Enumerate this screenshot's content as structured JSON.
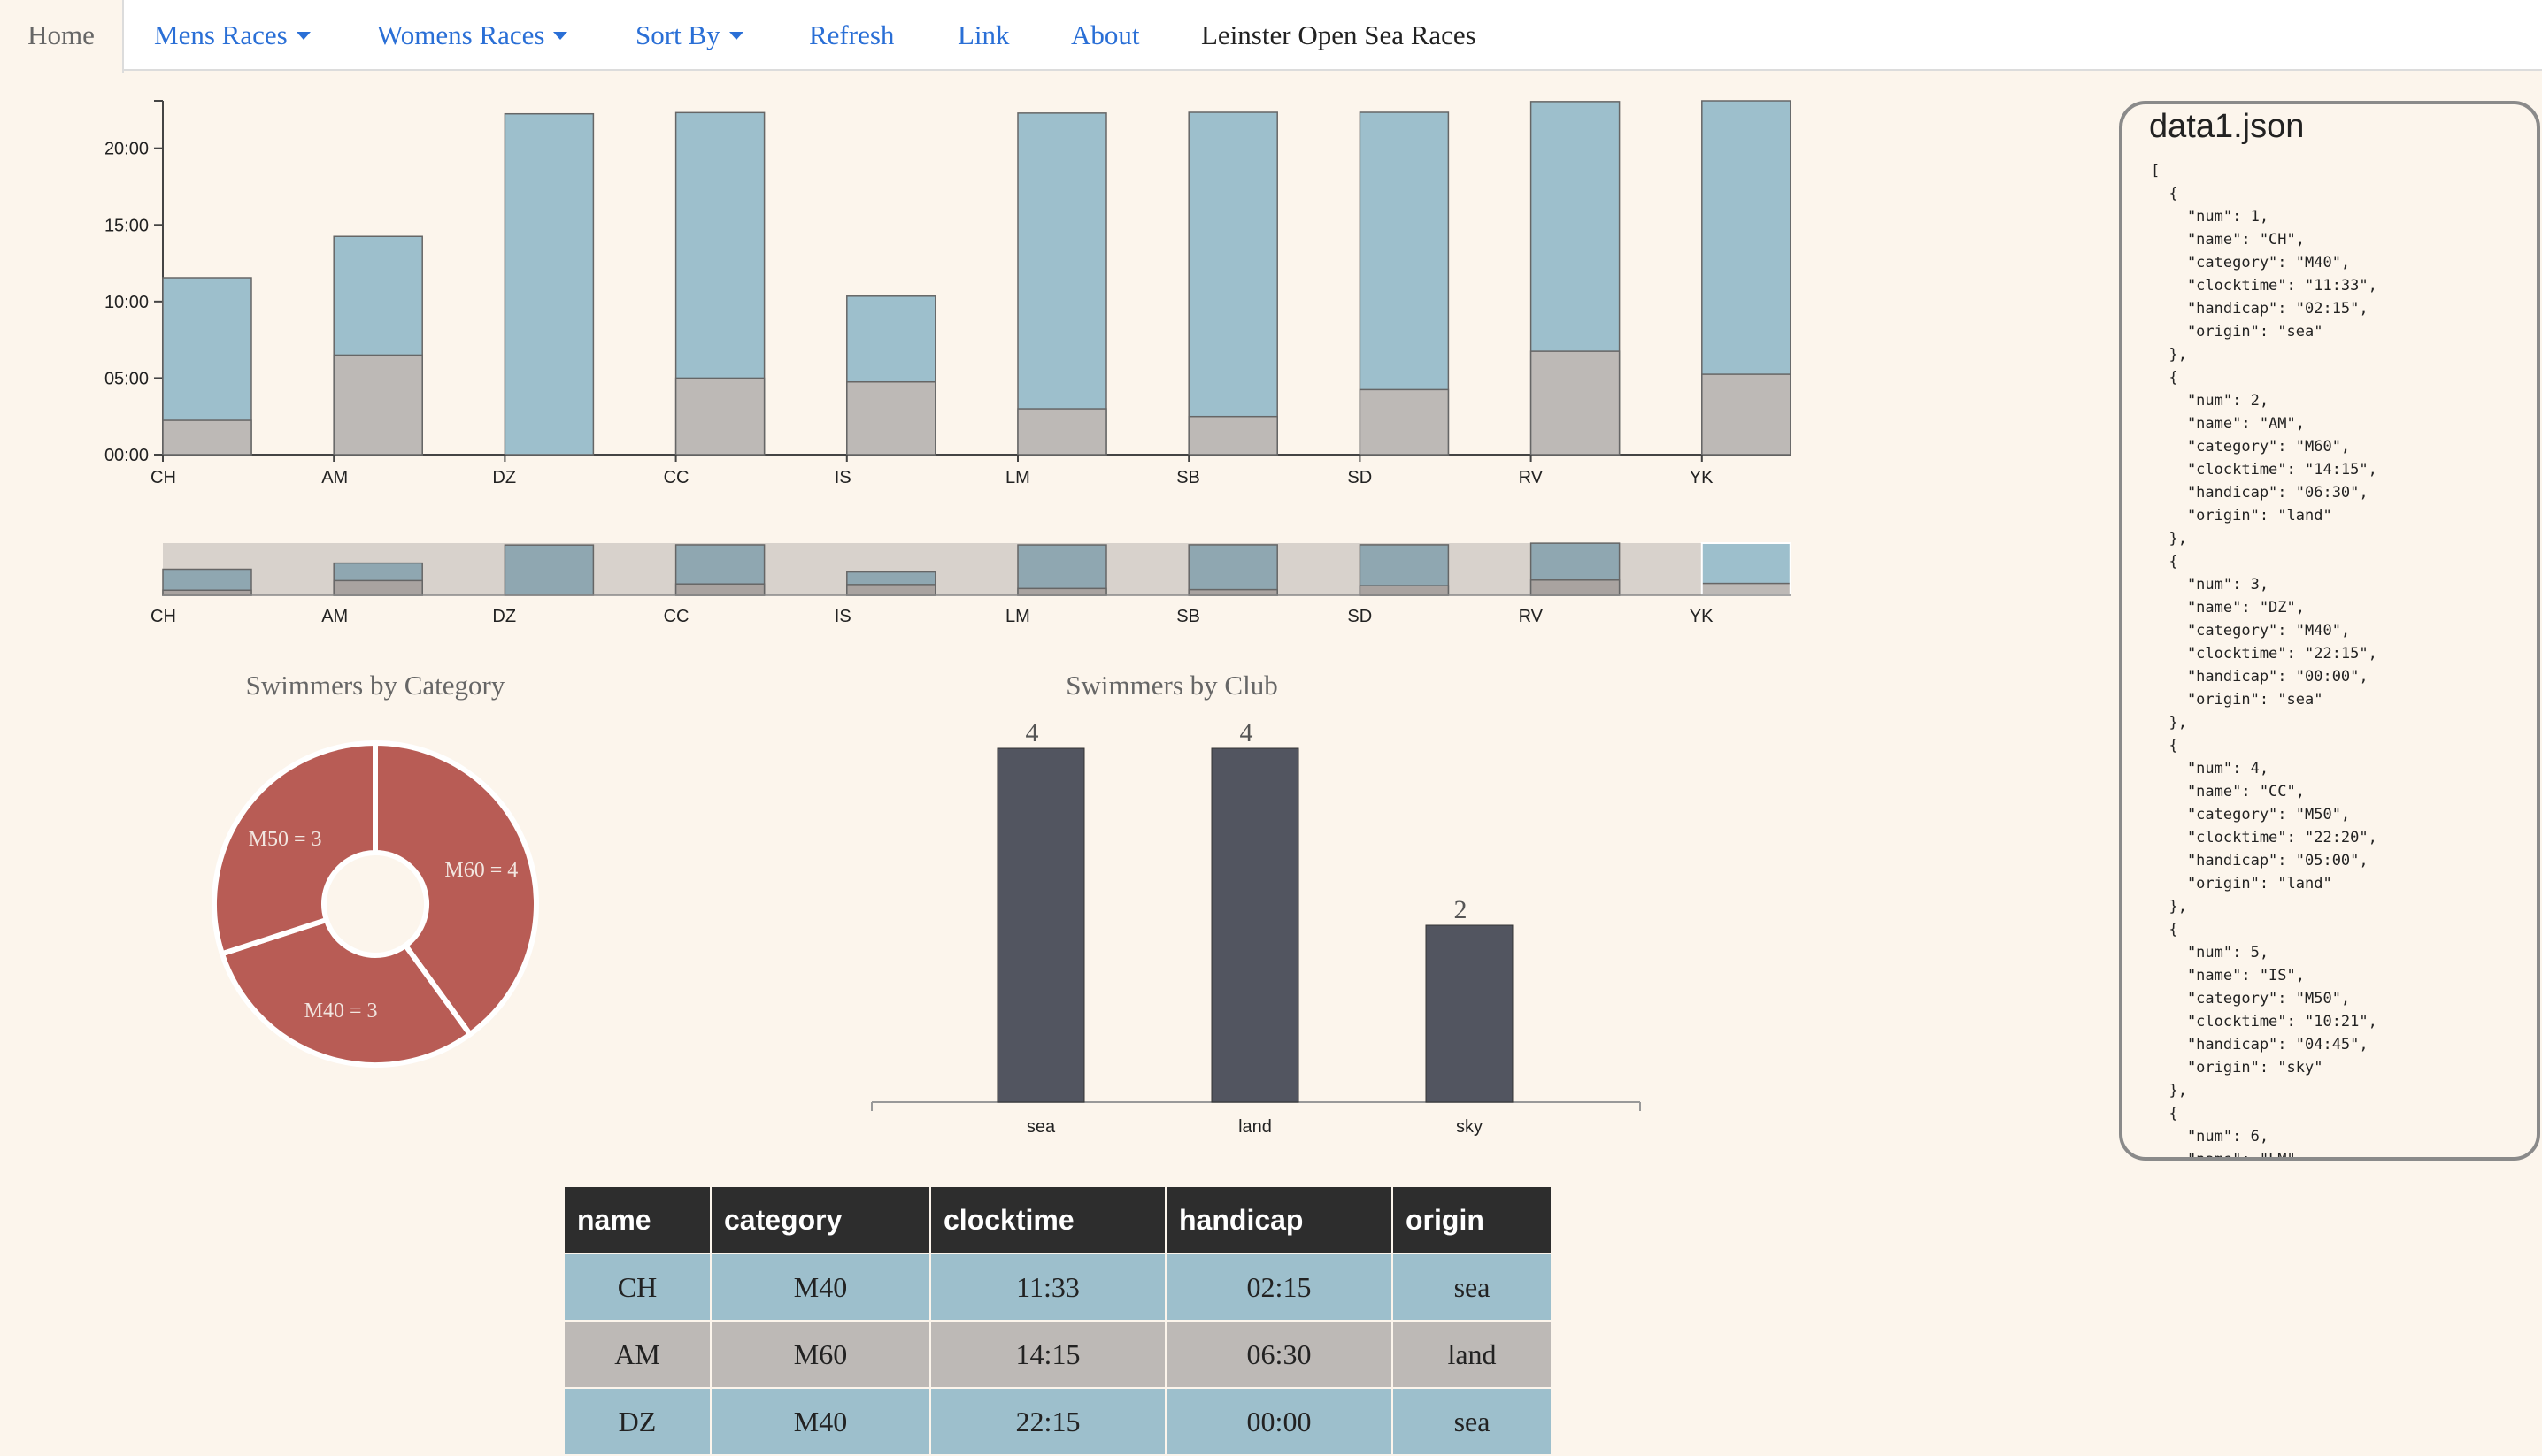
{
  "nav": {
    "home": "Home",
    "mens_races": "Mens Races",
    "womens_races": "Womens Races",
    "sort_by": "Sort By",
    "refresh": "Refresh",
    "link": "Link",
    "about": "About",
    "brand": "Leinster Open Sea Races"
  },
  "colors": {
    "clock_bar": "#9dbfcc",
    "handicap_bar": "#bdb9b6",
    "pie_slice": "#b85c55",
    "club_bar": "#525560",
    "background": "#fcf5ec",
    "table_header": "#2d2d2d"
  },
  "chart_data": [
    {
      "type": "bar",
      "stacked": true,
      "categories": [
        "CH",
        "AM",
        "DZ",
        "CC",
        "IS",
        "LM",
        "SB",
        "SD",
        "RV",
        "YK"
      ],
      "series": [
        {
          "values_minutes": [
            11.55,
            14.25,
            22.25,
            22.33,
            10.35,
            22.3,
            22.35,
            22.35,
            23.05,
            23.1
          ]
        },
        {
          "values_minutes": [
            2.25,
            6.5,
            0.0,
            5.0,
            4.75,
            3.0,
            2.5,
            4.25,
            6.75,
            5.25
          ]
        }
      ],
      "yticks": [
        "00:00",
        "05:00",
        "10:00",
        "15:00",
        "20:00"
      ],
      "ytick_minutes": [
        0,
        5,
        10,
        15,
        20
      ],
      "ylim": [
        0,
        23.1
      ]
    },
    {
      "type": "bar",
      "stacked": true,
      "categories": [
        "CH",
        "AM",
        "DZ",
        "CC",
        "IS",
        "LM",
        "SB",
        "SD",
        "RV",
        "YK"
      ],
      "series": [
        {
          "values_minutes": [
            11.55,
            14.25,
            22.25,
            22.33,
            10.35,
            22.3,
            22.35,
            22.35,
            23.05,
            23.1
          ]
        },
        {
          "values_minutes": [
            2.25,
            6.5,
            0.0,
            5.0,
            4.75,
            3.0,
            2.5,
            4.25,
            6.75,
            5.25
          ]
        }
      ],
      "brush_selected": [
        "YK"
      ],
      "ylim": [
        0,
        23.1
      ]
    },
    {
      "type": "pie",
      "title": "Swimmers by Category",
      "labels": [
        "M60 = 4",
        "M40 = 3",
        "M50 = 3"
      ],
      "values": [
        4,
        3,
        3
      ]
    },
    {
      "type": "bar",
      "title": "Swimmers by Club",
      "categories": [
        "sea",
        "land",
        "sky"
      ],
      "values": [
        4,
        4,
        2
      ],
      "value_labels": [
        "4",
        "4",
        "2"
      ],
      "ylim": [
        0,
        4
      ]
    }
  ],
  "json_panel": {
    "title": "data1.json",
    "content": "[\n  {\n    \"num\": 1,\n    \"name\": \"CH\",\n    \"category\": \"M40\",\n    \"clocktime\": \"11:33\",\n    \"handicap\": \"02:15\",\n    \"origin\": \"sea\"\n  },\n  {\n    \"num\": 2,\n    \"name\": \"AM\",\n    \"category\": \"M60\",\n    \"clocktime\": \"14:15\",\n    \"handicap\": \"06:30\",\n    \"origin\": \"land\"\n  },\n  {\n    \"num\": 3,\n    \"name\": \"DZ\",\n    \"category\": \"M40\",\n    \"clocktime\": \"22:15\",\n    \"handicap\": \"00:00\",\n    \"origin\": \"sea\"\n  },\n  {\n    \"num\": 4,\n    \"name\": \"CC\",\n    \"category\": \"M50\",\n    \"clocktime\": \"22:20\",\n    \"handicap\": \"05:00\",\n    \"origin\": \"land\"\n  },\n  {\n    \"num\": 5,\n    \"name\": \"IS\",\n    \"category\": \"M50\",\n    \"clocktime\": \"10:21\",\n    \"handicap\": \"04:45\",\n    \"origin\": \"sky\"\n  },\n  {\n    \"num\": 6,\n    \"name\": \"LM\","
  },
  "table": {
    "headers": [
      "name",
      "category",
      "clocktime",
      "handicap",
      "origin"
    ],
    "rows": [
      [
        "CH",
        "M40",
        "11:33",
        "02:15",
        "sea"
      ],
      [
        "AM",
        "M60",
        "14:15",
        "06:30",
        "land"
      ],
      [
        "DZ",
        "M40",
        "22:15",
        "00:00",
        "sea"
      ]
    ]
  }
}
